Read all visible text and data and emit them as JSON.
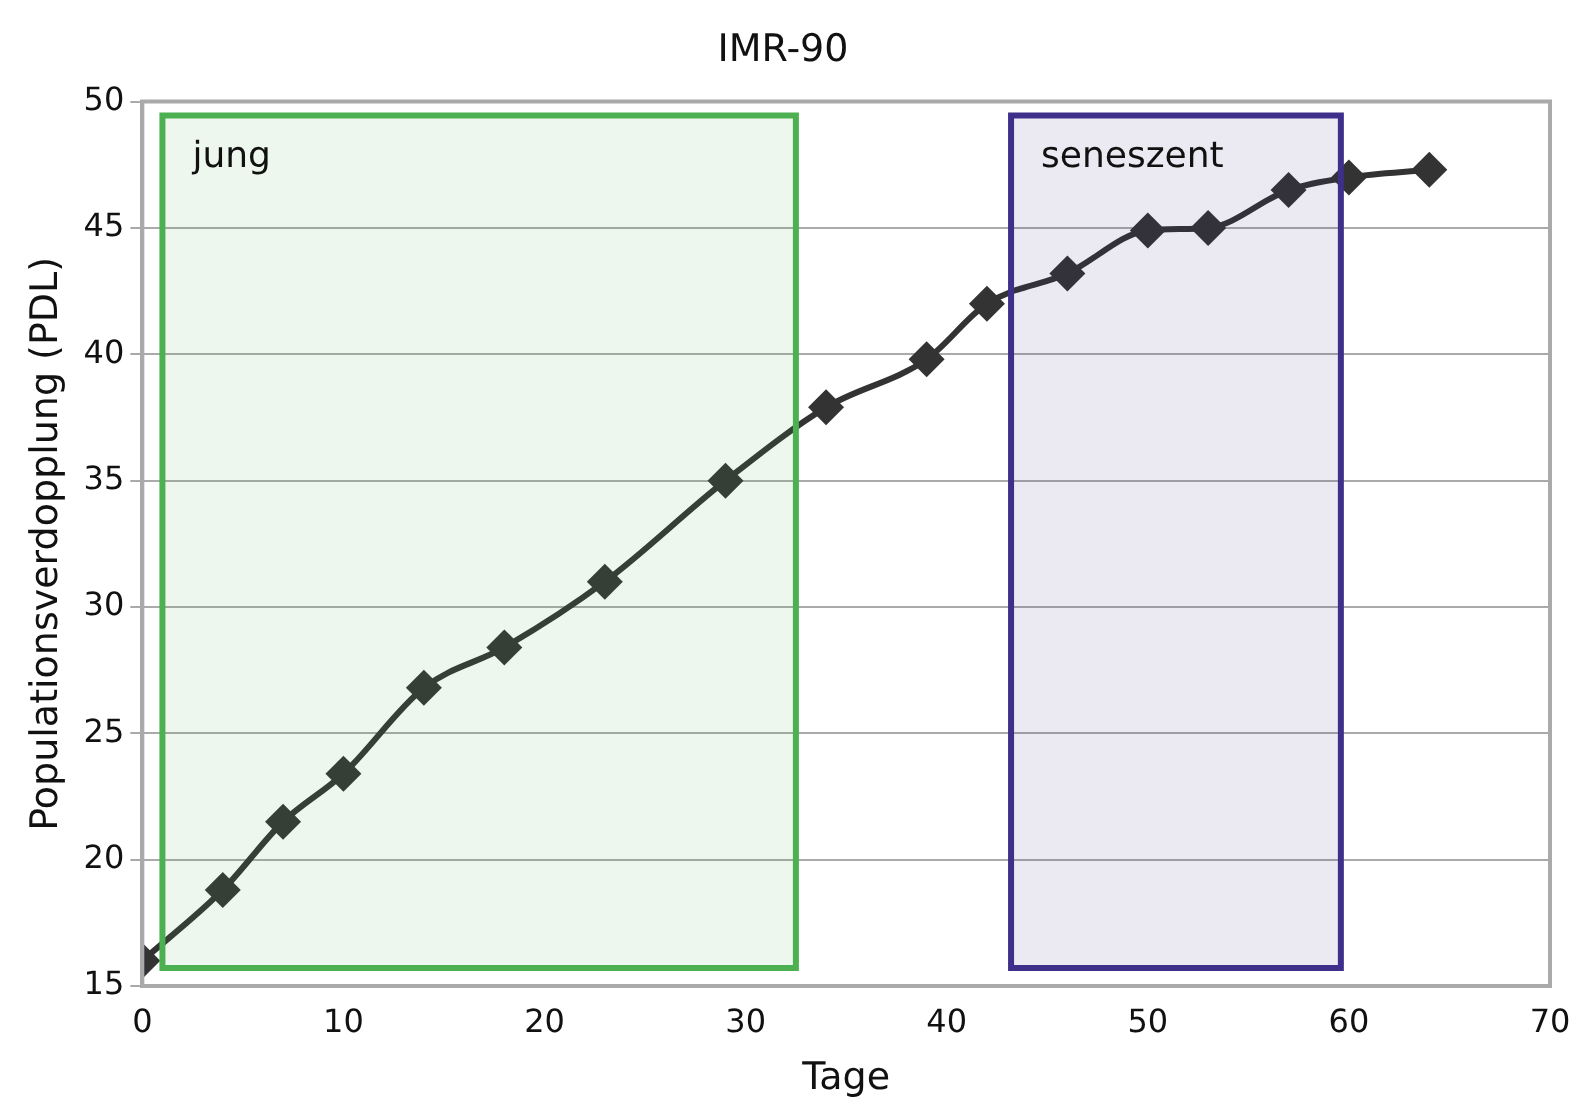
{
  "chart_data": {
    "type": "line",
    "title": "IMR-90",
    "xlabel": "Tage",
    "ylabel": "Populationsverdopplung (PDL)",
    "x": [
      0,
      4,
      7,
      10,
      14,
      18,
      23,
      29,
      34,
      39,
      42,
      46,
      50,
      53,
      57,
      60,
      64
    ],
    "series": [
      {
        "color": "#333333",
        "values": [
          16,
          18.8,
          21.5,
          23.4,
          26.8,
          28.4,
          31,
          35,
          37.9,
          39.8,
          42,
          43.2,
          44.9,
          45,
          46.5,
          47,
          47.3
        ]
      }
    ],
    "xlim": [
      0,
      70
    ],
    "xticks": [
      0,
      10,
      20,
      30,
      40,
      50,
      60,
      70
    ],
    "ylim": [
      15,
      50
    ],
    "yticks": [
      15,
      20,
      25,
      30,
      35,
      40,
      45,
      50
    ],
    "grid": "y",
    "legend": false,
    "marker": "diamond",
    "line_style": "solid",
    "bands": [
      {
        "axis": "x",
        "from": 1,
        "to": 32.5,
        "label": "jung",
        "color": "#4cb050"
      },
      {
        "axis": "x",
        "from": 43.2,
        "to": 59.6,
        "label": "seneszent",
        "color": "#3d2f8a"
      }
    ]
  }
}
